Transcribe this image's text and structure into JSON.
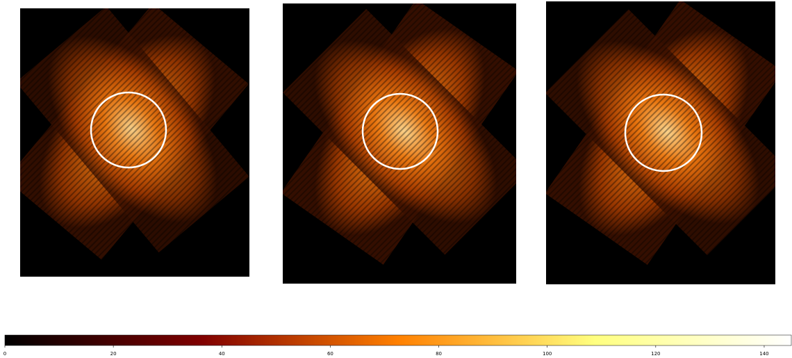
{
  "chart_data": {
    "type": "heatmap",
    "colormap": "afmhot",
    "clim": [
      0,
      145
    ],
    "cticks": [
      0,
      20,
      40,
      60,
      80,
      100,
      120,
      140
    ]
  }
}
